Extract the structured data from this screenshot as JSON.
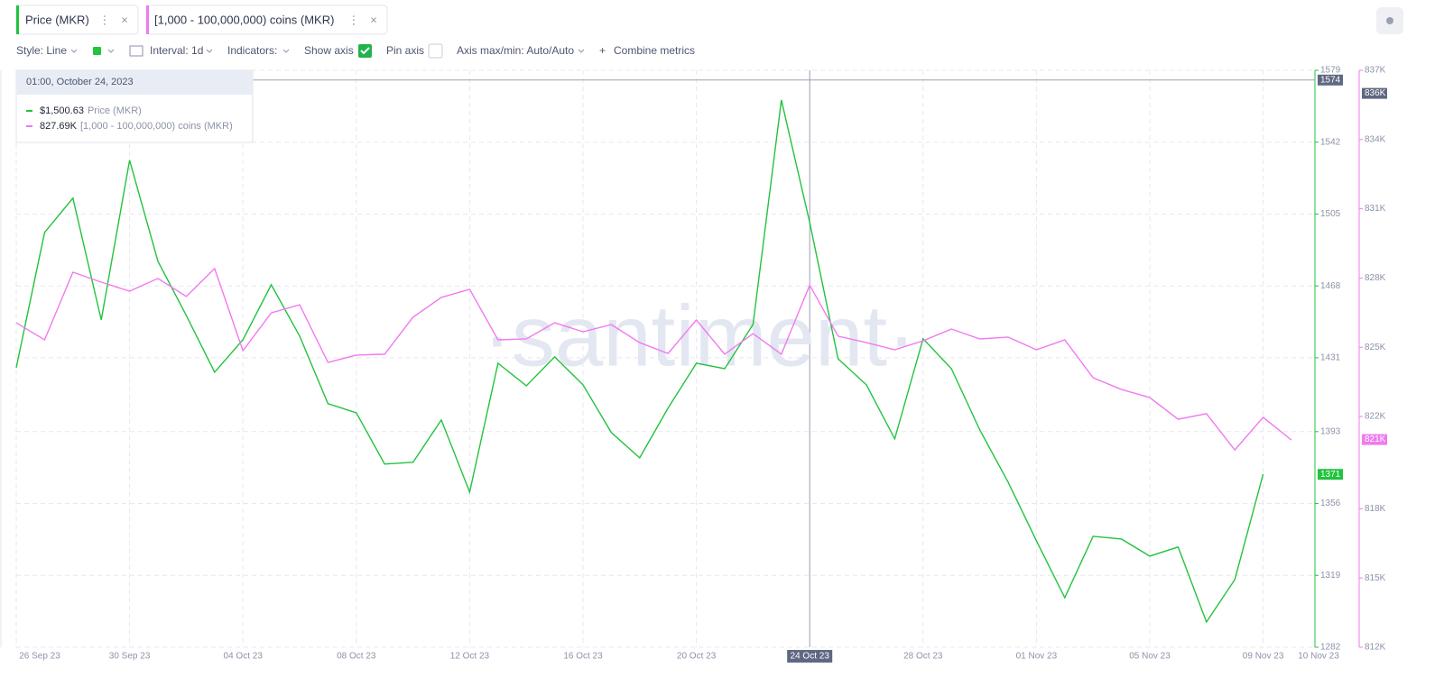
{
  "tabs": [
    "Price (MKR)",
    "[1,000 - 100,000,000) coins (MKR)"
  ],
  "toolbar": {
    "style": "Style: Line",
    "interval": "Interval: 1d",
    "indicators": "Indicators:",
    "show_axis": "Show axis",
    "pin_axis": "Pin axis",
    "axis_maxmin": "Axis max/min: Auto/Auto",
    "combine": "Combine metrics"
  },
  "tooltip": {
    "title": "01:00, October 24, 2023",
    "rows": [
      {
        "value": "$1,500.63"
      },
      {
        "value": "827.69K"
      }
    ]
  },
  "watermark": "·santiment·",
  "chart_data": {
    "type": "line",
    "categories": [
      "26 Sep 23",
      null,
      null,
      null,
      "30 Sep 23",
      null,
      null,
      null,
      "04 Oct 23",
      null,
      null,
      null,
      "08 Oct 23",
      null,
      null,
      null,
      "12 Oct 23",
      null,
      null,
      null,
      "16 Oct 23",
      null,
      null,
      null,
      "20 Oct 23",
      null,
      null,
      null,
      null,
      null,
      null,
      null,
      "28 Oct 23",
      null,
      null,
      null,
      "01 Nov 23",
      null,
      null,
      null,
      "05 Nov 23",
      null,
      null,
      null,
      "09 Nov 23",
      "10 Nov 23"
    ],
    "series": [
      {
        "name": "Price (MKR)",
        "color": "#22c33e",
        "values": [
          1425.9,
          1495.5,
          1513.2,
          1450.5,
          1532.7,
          1480.7,
          1452.8,
          1423.6,
          1440.3,
          1468.6,
          1442.2,
          1407.4,
          1402.7,
          1376.3,
          1377.2,
          1399.0,
          1361.9,
          1428.2,
          1416.6,
          1431.5,
          1417.1,
          1392.5,
          1379.5,
          1405.1,
          1428.2,
          1425.4,
          1448.2,
          1563.7,
          1500.63,
          1430.5,
          1417.1,
          1389.3,
          1440.8,
          1425.4,
          1393.9,
          1367.0,
          1336.8,
          1307.5,
          1339.1,
          1337.7,
          1328.9,
          1333.6,
          1295.0,
          1316.8,
          1371.1,
          null
        ],
        "last_label": 1371
      },
      {
        "name": "[1,000 - 100,000,000) coins (MKR)",
        "color": "#f07af0",
        "axis": "y2",
        "values": [
          826.06,
          825.32,
          828.25,
          827.82,
          827.43,
          827.98,
          827.2,
          828.41,
          824.85,
          826.49,
          826.84,
          824.34,
          824.66,
          824.7,
          826.3,
          827.16,
          827.51,
          825.32,
          825.36,
          826.06,
          825.67,
          825.98,
          825.2,
          824.73,
          826.18,
          824.7,
          825.59,
          824.7,
          827.69,
          825.48,
          825.2,
          824.89,
          825.28,
          825.79,
          825.36,
          825.44,
          824.89,
          825.32,
          823.68,
          823.17,
          822.82,
          821.88,
          822.12,
          820.55,
          821.96,
          820.98
        ],
        "last_label": {
          "value": 821,
          "label": "821K"
        }
      }
    ],
    "ylim": [
      1282,
      1579
    ],
    "yticks": [
      1282,
      1319,
      1356,
      1393,
      1431,
      1468,
      1505,
      1542,
      1579
    ],
    "y2lim": [
      812,
      837
    ],
    "y2ticks": [
      {
        "value": 812,
        "label": "812K"
      },
      {
        "value": 815,
        "label": "815K"
      },
      {
        "value": 818,
        "label": "818K"
      },
      {
        "value": 822,
        "label": "822K"
      },
      {
        "value": 825,
        "label": "825K"
      },
      {
        "value": 828,
        "label": "828K"
      },
      {
        "value": 831,
        "label": "831K"
      },
      {
        "value": 834,
        "label": "834K"
      },
      {
        "value": 837,
        "label": "837K"
      }
    ],
    "grid": true,
    "crosshair": {
      "x": "24 Oct 23",
      "y": 1574,
      "y2": {
        "value": 836,
        "label": "836K"
      }
    }
  }
}
